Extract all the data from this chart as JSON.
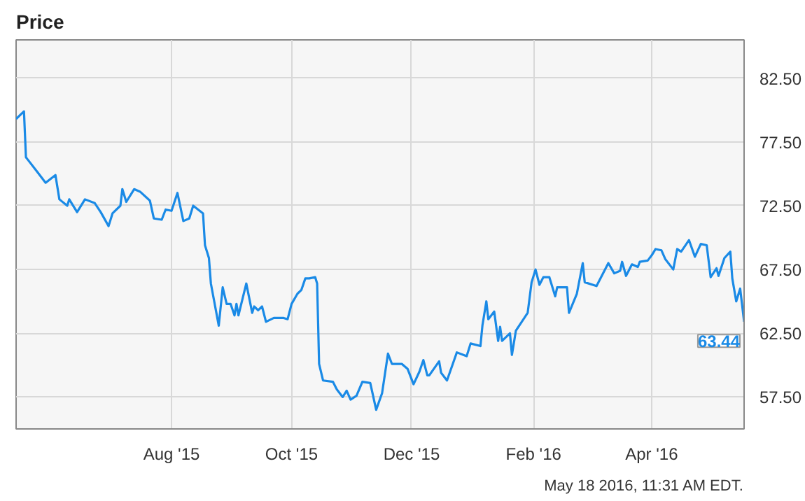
{
  "chart_data": {
    "type": "line",
    "title": "Price",
    "x": [
      "2015-05-14",
      "2015-05-18",
      "2015-05-19",
      "2015-05-20",
      "2015-05-25",
      "2015-05-29",
      "2015-06-03",
      "2015-06-05",
      "2015-06-09",
      "2015-06-10",
      "2015-06-14",
      "2015-06-18",
      "2015-06-23",
      "2015-06-26",
      "2015-06-30",
      "2015-07-02",
      "2015-07-06",
      "2015-07-07",
      "2015-07-09",
      "2015-07-13",
      "2015-07-16",
      "2015-07-21",
      "2015-07-23",
      "2015-07-27",
      "2015-07-29",
      "2015-08-01",
      "2015-08-04",
      "2015-08-07",
      "2015-08-10",
      "2015-08-12",
      "2015-08-17",
      "2015-08-18",
      "2015-08-20",
      "2015-08-21",
      "2015-08-25",
      "2015-08-27",
      "2015-08-29",
      "2015-08-31",
      "2015-09-02",
      "2015-09-03",
      "2015-09-04",
      "2015-09-08",
      "2015-09-11",
      "2015-09-12",
      "2015-09-14",
      "2015-09-16",
      "2015-09-18",
      "2015-09-22",
      "2015-09-27",
      "2015-09-29",
      "2015-10-01",
      "2015-10-04",
      "2015-10-06",
      "2015-10-08",
      "2015-10-10",
      "2015-10-13",
      "2015-10-14",
      "2015-10-15",
      "2015-10-17",
      "2015-10-22",
      "2015-10-24",
      "2015-10-27",
      "2015-10-29",
      "2015-10-31",
      "2015-11-03",
      "2015-11-06",
      "2015-11-10",
      "2015-11-13",
      "2015-11-16",
      "2015-11-19",
      "2015-11-21",
      "2015-11-26",
      "2015-11-29",
      "2015-12-02",
      "2015-12-05",
      "2015-12-07",
      "2015-12-09",
      "2015-12-10",
      "2015-12-15",
      "2015-12-16",
      "2015-12-19",
      "2015-12-24",
      "2015-12-29",
      "2015-12-31",
      "2016-01-05",
      "2016-01-06",
      "2016-01-08",
      "2016-01-09",
      "2016-01-12",
      "2016-01-14",
      "2016-01-15",
      "2016-01-16",
      "2016-01-20",
      "2016-01-21",
      "2016-01-23",
      "2016-01-26",
      "2016-01-29",
      "2016-01-31",
      "2016-02-02",
      "2016-02-04",
      "2016-02-06",
      "2016-02-09",
      "2016-02-12",
      "2016-02-13",
      "2016-02-18",
      "2016-02-19",
      "2016-02-23",
      "2016-02-26",
      "2016-02-27",
      "2016-03-04",
      "2016-03-09",
      "2016-03-10",
      "2016-03-13",
      "2016-03-16",
      "2016-03-17",
      "2016-03-19",
      "2016-03-22",
      "2016-03-25",
      "2016-03-26",
      "2016-03-30",
      "2016-04-01",
      "2016-04-03",
      "2016-04-06",
      "2016-04-08",
      "2016-04-12",
      "2016-04-14",
      "2016-04-16",
      "2016-04-20",
      "2016-04-23",
      "2016-04-26",
      "2016-04-29",
      "2016-05-01",
      "2016-05-04",
      "2016-05-05",
      "2016-05-08",
      "2016-05-11",
      "2016-05-12",
      "2016-05-14",
      "2016-05-16",
      "2016-05-17",
      "2016-05-18"
    ],
    "series": [
      {
        "color": "#1a8ae6",
        "values": [
          79.3,
          79.9,
          76.3,
          76.1,
          75.1,
          74.3,
          74.9,
          73.0,
          72.5,
          73.0,
          72.0,
          73.0,
          72.7,
          72.0,
          70.9,
          71.9,
          72.5,
          73.8,
          72.8,
          73.8,
          73.6,
          72.9,
          71.5,
          71.4,
          72.2,
          72.1,
          73.5,
          71.3,
          71.5,
          72.5,
          71.9,
          69.4,
          68.4,
          66.4,
          63.1,
          66.1,
          64.8,
          64.8,
          63.9,
          64.8,
          63.9,
          66.4,
          64.1,
          64.6,
          64.3,
          64.6,
          63.4,
          63.7,
          63.7,
          63.6,
          64.8,
          65.6,
          65.9,
          66.8,
          66.8,
          66.9,
          66.4,
          60.1,
          58.8,
          58.7,
          58.1,
          57.5,
          58.0,
          57.3,
          57.6,
          58.7,
          58.6,
          56.5,
          57.8,
          60.9,
          60.1,
          60.1,
          59.7,
          58.5,
          59.5,
          60.4,
          59.2,
          59.2,
          60.3,
          59.4,
          58.8,
          61.0,
          60.7,
          61.7,
          61.5,
          63.1,
          65.0,
          63.6,
          64.2,
          61.9,
          63.0,
          61.9,
          62.5,
          60.8,
          62.7,
          63.4,
          64.1,
          66.5,
          67.5,
          66.3,
          66.9,
          66.9,
          65.4,
          66.1,
          66.1,
          64.1,
          65.6,
          68.0,
          66.5,
          66.2,
          67.7,
          68.0,
          67.2,
          67.4,
          68.1,
          67.0,
          67.9,
          67.7,
          68.1,
          68.2,
          68.6,
          69.1,
          69.0,
          68.3,
          67.5,
          69.1,
          68.9,
          69.8,
          68.5,
          69.5,
          69.4,
          66.9,
          67.6,
          67.0,
          68.4,
          68.9,
          66.8,
          65.0,
          66.0,
          64.7,
          63.4
        ]
      }
    ],
    "xlim": [
      "2015-05-14",
      "2016-05-18"
    ],
    "xticks": [
      {
        "value": "2015-08-01",
        "label": "Aug '15"
      },
      {
        "value": "2015-10-01",
        "label": "Oct '15"
      },
      {
        "value": "2015-12-01",
        "label": "Dec '15"
      },
      {
        "value": "2016-02-01",
        "label": "Feb '16"
      },
      {
        "value": "2016-04-01",
        "label": "Apr '16"
      }
    ],
    "ylim": [
      55,
      85.5
    ],
    "yticks": [
      {
        "value": 57.5,
        "label": "57.50"
      },
      {
        "value": 62.5,
        "label": "62.50"
      },
      {
        "value": 67.5,
        "label": "67.50"
      },
      {
        "value": 72.5,
        "label": "72.50"
      },
      {
        "value": 77.5,
        "label": "77.50"
      },
      {
        "value": 82.5,
        "label": "82.50"
      }
    ],
    "grid": true,
    "line_style": "solid",
    "marker": "none",
    "annotations": [
      {
        "text": "63.44",
        "x": "2016-05-18",
        "y": 63.44
      },
      "May 18 2016, 11:31 AM EDT."
    ]
  }
}
